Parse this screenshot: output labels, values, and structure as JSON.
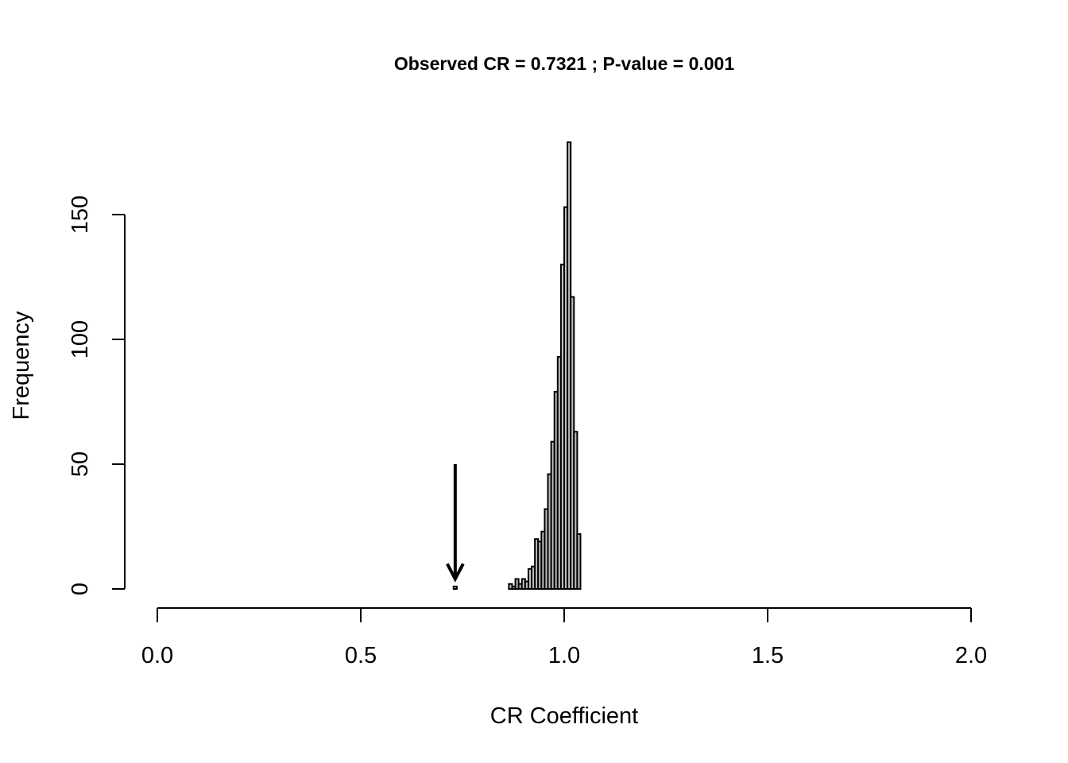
{
  "chart_data": {
    "type": "bar",
    "title": "Observed CR = 0.7321 ; P-value = 0.001",
    "xlabel": "CR Coefficient",
    "ylabel": "Frequency",
    "xlim": [
      0,
      2
    ],
    "ylim": [
      0,
      180
    ],
    "x_ticks": [
      0,
      0.5,
      1,
      1.5,
      2
    ],
    "x_tick_labels": [
      "0.0",
      "0.5",
      "1.0",
      "1.5",
      "2.0"
    ],
    "y_ticks": [
      0,
      50,
      100,
      150
    ],
    "y_tick_labels": [
      "0",
      "50",
      "100",
      "150"
    ],
    "grid": false,
    "bin_width": 0.008,
    "bins": [
      {
        "start": 0.728,
        "count": 1
      },
      {
        "start": 0.736,
        "count": 0
      },
      {
        "start": 0.744,
        "count": 0
      },
      {
        "start": 0.752,
        "count": 0
      },
      {
        "start": 0.76,
        "count": 0
      },
      {
        "start": 0.768,
        "count": 0
      },
      {
        "start": 0.776,
        "count": 0
      },
      {
        "start": 0.784,
        "count": 0
      },
      {
        "start": 0.792,
        "count": 0
      },
      {
        "start": 0.8,
        "count": 0
      },
      {
        "start": 0.808,
        "count": 0
      },
      {
        "start": 0.816,
        "count": 0
      },
      {
        "start": 0.824,
        "count": 0
      },
      {
        "start": 0.832,
        "count": 0
      },
      {
        "start": 0.84,
        "count": 0
      },
      {
        "start": 0.848,
        "count": 0
      },
      {
        "start": 0.856,
        "count": 0
      },
      {
        "start": 0.864,
        "count": 2
      },
      {
        "start": 0.872,
        "count": 1
      },
      {
        "start": 0.88,
        "count": 4
      },
      {
        "start": 0.888,
        "count": 2
      },
      {
        "start": 0.896,
        "count": 4
      },
      {
        "start": 0.904,
        "count": 3
      },
      {
        "start": 0.912,
        "count": 8
      },
      {
        "start": 0.92,
        "count": 9
      },
      {
        "start": 0.928,
        "count": 20
      },
      {
        "start": 0.936,
        "count": 19
      },
      {
        "start": 0.944,
        "count": 23
      },
      {
        "start": 0.952,
        "count": 32
      },
      {
        "start": 0.96,
        "count": 46
      },
      {
        "start": 0.968,
        "count": 59
      },
      {
        "start": 0.976,
        "count": 79
      },
      {
        "start": 0.984,
        "count": 93
      },
      {
        "start": 0.992,
        "count": 130
      },
      {
        "start": 1.0,
        "count": 153
      },
      {
        "start": 1.008,
        "count": 179
      },
      {
        "start": 1.016,
        "count": 117
      },
      {
        "start": 1.024,
        "count": 63
      },
      {
        "start": 1.032,
        "count": 22
      }
    ],
    "annotation": {
      "type": "arrow",
      "x": 0.7321,
      "y_from": 50,
      "y_to": 4
    }
  }
}
